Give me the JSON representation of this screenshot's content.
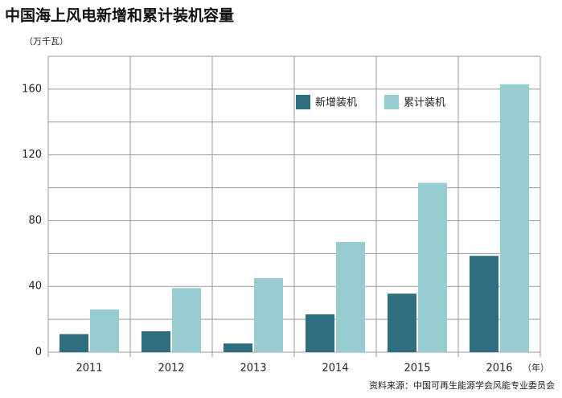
{
  "chart_data": {
    "type": "bar",
    "title": "中国海上风电新增和累计装机容量",
    "y_unit": "（万千瓦）",
    "x_unit": "（年）",
    "source": "资料来源：中国可再生能源学会风能专业委员会",
    "categories": [
      "2011",
      "2012",
      "2013",
      "2014",
      "2015",
      "2016"
    ],
    "series": [
      {
        "name": "新增装机",
        "color": "#2e6e7e",
        "values": [
          11,
          12.7,
          5.3,
          23,
          35.6,
          58.6
        ]
      },
      {
        "name": "累计装机",
        "color": "#97cdd0",
        "values": [
          26,
          39,
          45,
          67,
          103,
          163
        ]
      }
    ],
    "ylim": [
      0,
      180
    ],
    "yticks": [
      0,
      40,
      80,
      120,
      160
    ],
    "minor_yticks": [
      20,
      60,
      100,
      140,
      180
    ],
    "grid": true,
    "legend": "top"
  }
}
